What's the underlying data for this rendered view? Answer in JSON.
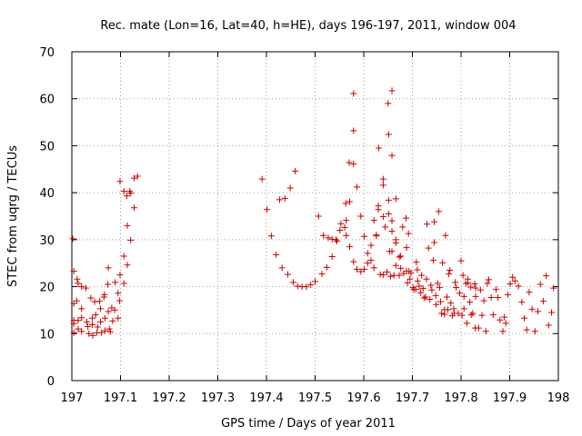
{
  "chart_data": {
    "type": "scatter",
    "title": "Rec. mate (Lon=16, Lat=40, h=HE), days 196-197, 2011, window 004",
    "xlabel": "GPS time / Days of year 2011",
    "ylabel": "STEC from uqrg / TECUs",
    "xlim": [
      197,
      198
    ],
    "ylim": [
      0,
      70
    ],
    "x_ticks": [
      "197",
      "197.1",
      "197.2",
      "197.3",
      "197.4",
      "197.5",
      "197.6",
      "197.7",
      "197.8",
      "197.9",
      "198"
    ],
    "y_ticks": [
      "0",
      "10",
      "20",
      "30",
      "40",
      "50",
      "60",
      "70"
    ],
    "grid": true,
    "legend": "none",
    "marker": "plus",
    "color": "#cc0000",
    "series": [
      {
        "points": [
          [
            197.002,
            30.2
          ],
          [
            197.004,
            23.3
          ],
          [
            197.004,
            16.4
          ],
          [
            197.004,
            12.8
          ],
          [
            197.004,
            12.1
          ],
          [
            197.004,
            10.2
          ],
          [
            197.01,
            17.0
          ],
          [
            197.011,
            21.6
          ],
          [
            197.013,
            20.7
          ],
          [
            197.013,
            12.8
          ],
          [
            197.013,
            11.0
          ],
          [
            197.02,
            20.0
          ],
          [
            197.02,
            15.3
          ],
          [
            197.02,
            13.4
          ],
          [
            197.02,
            10.5
          ],
          [
            197.029,
            19.7
          ],
          [
            197.031,
            12.5
          ],
          [
            197.033,
            11.5
          ],
          [
            197.035,
            10.0
          ],
          [
            197.039,
            17.6
          ],
          [
            197.042,
            13.3
          ],
          [
            197.042,
            11.9
          ],
          [
            197.043,
            9.6
          ],
          [
            197.047,
            16.8
          ],
          [
            197.049,
            14.0
          ],
          [
            197.051,
            10.2
          ],
          [
            197.053,
            11.4
          ],
          [
            197.057,
            16.9
          ],
          [
            197.059,
            15.3
          ],
          [
            197.059,
            12.5
          ],
          [
            197.061,
            10.2
          ],
          [
            197.066,
            17.8
          ],
          [
            197.067,
            18.3
          ],
          [
            197.068,
            13.3
          ],
          [
            197.068,
            10.6
          ],
          [
            197.074,
            20.5
          ],
          [
            197.075,
            24.0
          ],
          [
            197.075,
            14.7
          ],
          [
            197.077,
            11.0
          ],
          [
            197.079,
            10.4
          ],
          [
            197.082,
            15.5
          ],
          [
            197.084,
            12.7
          ],
          [
            197.088,
            15.0
          ],
          [
            197.089,
            20.9
          ],
          [
            197.095,
            18.6
          ],
          [
            197.095,
            13.3
          ],
          [
            197.098,
            17.0
          ],
          [
            197.099,
            42.4
          ],
          [
            197.099,
            22.5
          ],
          [
            197.107,
            40.3
          ],
          [
            197.107,
            26.5
          ],
          [
            197.107,
            20.7
          ],
          [
            197.113,
            39.3
          ],
          [
            197.114,
            33.0
          ],
          [
            197.114,
            24.6
          ],
          [
            197.119,
            40.3
          ],
          [
            197.121,
            39.9
          ],
          [
            197.121,
            29.9
          ],
          [
            197.128,
            43.1
          ],
          [
            197.128,
            36.8
          ],
          [
            197.135,
            43.5
          ],
          [
            197.391,
            42.9
          ],
          [
            197.401,
            36.4
          ],
          [
            197.41,
            30.8
          ],
          [
            197.42,
            26.8
          ],
          [
            197.427,
            38.5
          ],
          [
            197.432,
            24.0
          ],
          [
            197.438,
            38.8
          ],
          [
            197.444,
            22.6
          ],
          [
            197.449,
            41.0
          ],
          [
            197.455,
            20.9
          ],
          [
            197.459,
            44.6
          ],
          [
            197.464,
            20.1
          ],
          [
            197.473,
            20.0
          ],
          [
            197.482,
            20.0
          ],
          [
            197.491,
            20.4
          ],
          [
            197.5,
            21.1
          ],
          [
            197.507,
            35.0
          ],
          [
            197.514,
            22.7
          ],
          [
            197.517,
            30.9
          ],
          [
            197.524,
            24.1
          ],
          [
            197.527,
            30.4
          ],
          [
            197.535,
            26.4
          ],
          [
            197.535,
            30.1
          ],
          [
            197.543,
            30.0
          ],
          [
            197.545,
            29.7
          ],
          [
            197.551,
            32.0
          ],
          [
            197.553,
            33.4
          ],
          [
            197.561,
            32.6
          ],
          [
            197.563,
            37.7
          ],
          [
            197.564,
            34.1
          ],
          [
            197.564,
            30.9
          ],
          [
            197.57,
            46.4
          ],
          [
            197.571,
            38.1
          ],
          [
            197.571,
            28.5
          ],
          [
            197.579,
            61.1
          ],
          [
            197.579,
            53.2
          ],
          [
            197.579,
            46.1
          ],
          [
            197.579,
            25.3
          ],
          [
            197.586,
            41.2
          ],
          [
            197.586,
            23.7
          ],
          [
            197.594,
            35.0
          ],
          [
            197.594,
            23.2
          ],
          [
            197.601,
            30.7
          ],
          [
            197.601,
            23.7
          ],
          [
            197.608,
            25.0
          ],
          [
            197.608,
            27.1
          ],
          [
            197.615,
            25.6
          ],
          [
            197.615,
            28.8
          ],
          [
            197.621,
            34.1
          ],
          [
            197.621,
            24.0
          ],
          [
            197.626,
            30.8
          ],
          [
            197.626,
            31.0
          ],
          [
            197.63,
            36.4
          ],
          [
            197.63,
            37.2
          ],
          [
            197.631,
            49.5
          ],
          [
            197.634,
            22.6
          ],
          [
            197.64,
            42.9
          ],
          [
            197.64,
            41.6
          ],
          [
            197.64,
            34.9
          ],
          [
            197.64,
            22.5
          ],
          [
            197.644,
            32.7
          ],
          [
            197.648,
            23.1
          ],
          [
            197.65,
            59.0
          ],
          [
            197.651,
            52.4
          ],
          [
            197.651,
            38.4
          ],
          [
            197.651,
            35.5
          ],
          [
            197.653,
            27.5
          ],
          [
            197.655,
            22.2
          ],
          [
            197.658,
            61.7
          ],
          [
            197.658,
            47.9
          ],
          [
            197.658,
            34.0
          ],
          [
            197.658,
            31.8
          ],
          [
            197.658,
            27.5
          ],
          [
            197.662,
            22.4
          ],
          [
            197.666,
            38.7
          ],
          [
            197.666,
            29.3
          ],
          [
            197.666,
            24.5
          ],
          [
            197.666,
            30.0
          ],
          [
            197.673,
            26.3
          ],
          [
            197.673,
            22.4
          ],
          [
            197.676,
            26.5
          ],
          [
            197.676,
            23.9
          ],
          [
            197.68,
            32.7
          ],
          [
            197.682,
            22.8
          ],
          [
            197.687,
            34.6
          ],
          [
            197.688,
            28.3
          ],
          [
            197.688,
            23.3
          ],
          [
            197.69,
            20.8
          ],
          [
            197.692,
            31.3
          ],
          [
            197.693,
            23.3
          ],
          [
            197.695,
            21.6
          ],
          [
            197.697,
            22.9
          ],
          [
            197.701,
            19.8
          ],
          [
            197.703,
            19.4
          ],
          [
            197.707,
            19.4
          ],
          [
            197.708,
            25.2
          ],
          [
            197.71,
            23.6
          ],
          [
            197.711,
            21.2
          ],
          [
            197.714,
            20.1
          ],
          [
            197.717,
            18.7
          ],
          [
            197.719,
            22.4
          ],
          [
            197.722,
            19.6
          ],
          [
            197.724,
            17.6
          ],
          [
            197.727,
            17.8
          ],
          [
            197.729,
            21.6
          ],
          [
            197.73,
            33.3
          ],
          [
            197.733,
            28.2
          ],
          [
            197.736,
            17.3
          ],
          [
            197.738,
            20.3
          ],
          [
            197.74,
            19.3
          ],
          [
            197.743,
            25.6
          ],
          [
            197.745,
            33.8
          ],
          [
            197.745,
            29.4
          ],
          [
            197.748,
            18.1
          ],
          [
            197.749,
            16.2
          ],
          [
            197.752,
            20.7
          ],
          [
            197.754,
            36.0
          ],
          [
            197.756,
            19.8
          ],
          [
            197.758,
            16.8
          ],
          [
            197.76,
            14.3
          ],
          [
            197.762,
            25.1
          ],
          [
            197.766,
            15.1
          ],
          [
            197.766,
            14.1
          ],
          [
            197.768,
            30.9
          ],
          [
            197.771,
            17.8
          ],
          [
            197.773,
            15.1
          ],
          [
            197.775,
            22.7
          ],
          [
            197.777,
            23.5
          ],
          [
            197.779,
            16.5
          ],
          [
            197.782,
            13.8
          ],
          [
            197.785,
            15.3
          ],
          [
            197.786,
            14.3
          ],
          [
            197.788,
            20.9
          ],
          [
            197.79,
            19.8
          ],
          [
            197.794,
            14.3
          ],
          [
            197.797,
            18.6
          ],
          [
            197.8,
            25.5
          ],
          [
            197.802,
            13.9
          ],
          [
            197.804,
            22.4
          ],
          [
            197.806,
            17.9
          ],
          [
            197.806,
            15.3
          ],
          [
            197.81,
            20.7
          ],
          [
            197.812,
            12.2
          ],
          [
            197.814,
            21.6
          ],
          [
            197.814,
            20.8
          ],
          [
            197.818,
            16.7
          ],
          [
            197.82,
            19.9
          ],
          [
            197.821,
            14.0
          ],
          [
            197.824,
            14.3
          ],
          [
            197.828,
            20.6
          ],
          [
            197.829,
            11.2
          ],
          [
            197.83,
            19.7
          ],
          [
            197.83,
            17.9
          ],
          [
            197.836,
            11.2
          ],
          [
            197.84,
            19.3
          ],
          [
            197.843,
            13.9
          ],
          [
            197.847,
            17.0
          ],
          [
            197.851,
            10.5
          ],
          [
            197.854,
            20.7
          ],
          [
            197.857,
            21.5
          ],
          [
            197.862,
            17.7
          ],
          [
            197.866,
            14.0
          ],
          [
            197.872,
            19.4
          ],
          [
            197.876,
            17.7
          ],
          [
            197.88,
            12.9
          ],
          [
            197.886,
            10.5
          ],
          [
            197.889,
            13.5
          ],
          [
            197.892,
            12.2
          ],
          [
            197.896,
            18.3
          ],
          [
            197.901,
            20.6
          ],
          [
            197.906,
            22.0
          ],
          [
            197.911,
            21.2
          ],
          [
            197.918,
            20.1
          ],
          [
            197.925,
            16.7
          ],
          [
            197.93,
            13.3
          ],
          [
            197.935,
            10.8
          ],
          [
            197.94,
            18.8
          ],
          [
            197.946,
            15.2
          ],
          [
            197.952,
            10.5
          ],
          [
            197.958,
            14.7
          ],
          [
            197.963,
            20.5
          ],
          [
            197.969,
            16.9
          ],
          [
            197.975,
            22.3
          ],
          [
            197.98,
            11.8
          ],
          [
            197.986,
            14.5
          ],
          [
            197.99,
            19.7
          ]
        ]
      }
    ]
  }
}
